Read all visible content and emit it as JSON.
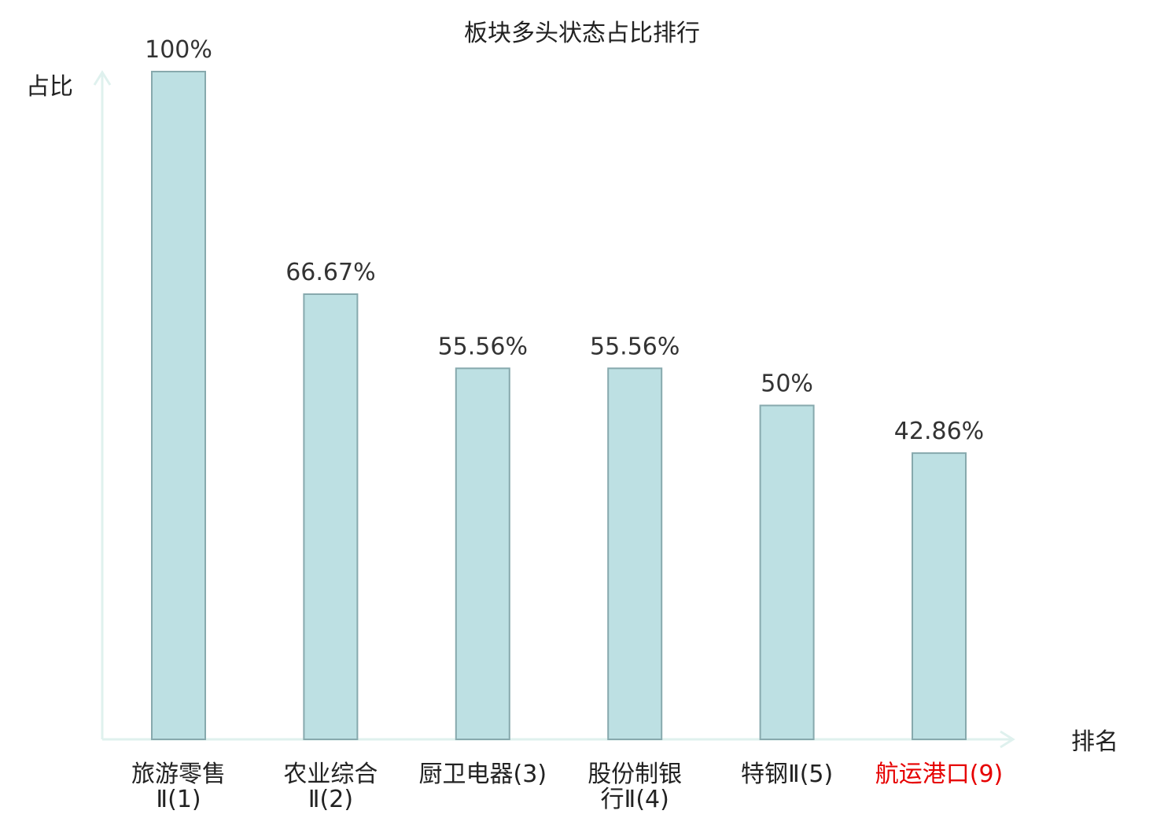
{
  "chart_data": {
    "type": "bar",
    "title": "板块多头状态占比排行",
    "xlabel": "排名",
    "ylabel": "占比",
    "ylim": [
      0,
      100
    ],
    "grid": false,
    "categories": [
      {
        "lines": [
          "旅游零售",
          "Ⅱ(1)"
        ],
        "highlight": false
      },
      {
        "lines": [
          "农业综合",
          "Ⅱ(2)"
        ],
        "highlight": false
      },
      {
        "lines": [
          "厨卫电器(3)"
        ],
        "highlight": false
      },
      {
        "lines": [
          "股份制银",
          "行Ⅱ(4)"
        ],
        "highlight": false
      },
      {
        "lines": [
          "特钢Ⅱ(5)"
        ],
        "highlight": false
      },
      {
        "lines": [
          "航运港口(9)"
        ],
        "highlight": true
      }
    ],
    "values": [
      100,
      66.67,
      55.56,
      55.56,
      50,
      42.86
    ],
    "value_labels": [
      "100%",
      "66.67%",
      "55.56%",
      "55.56%",
      "50%",
      "42.86%"
    ]
  },
  "colors": {
    "bar_fill": "#bde0e3",
    "bar_stroke": "#87a9ad",
    "axis": "#dff1ee",
    "text": "#222222",
    "highlight_text": "#e60000"
  }
}
